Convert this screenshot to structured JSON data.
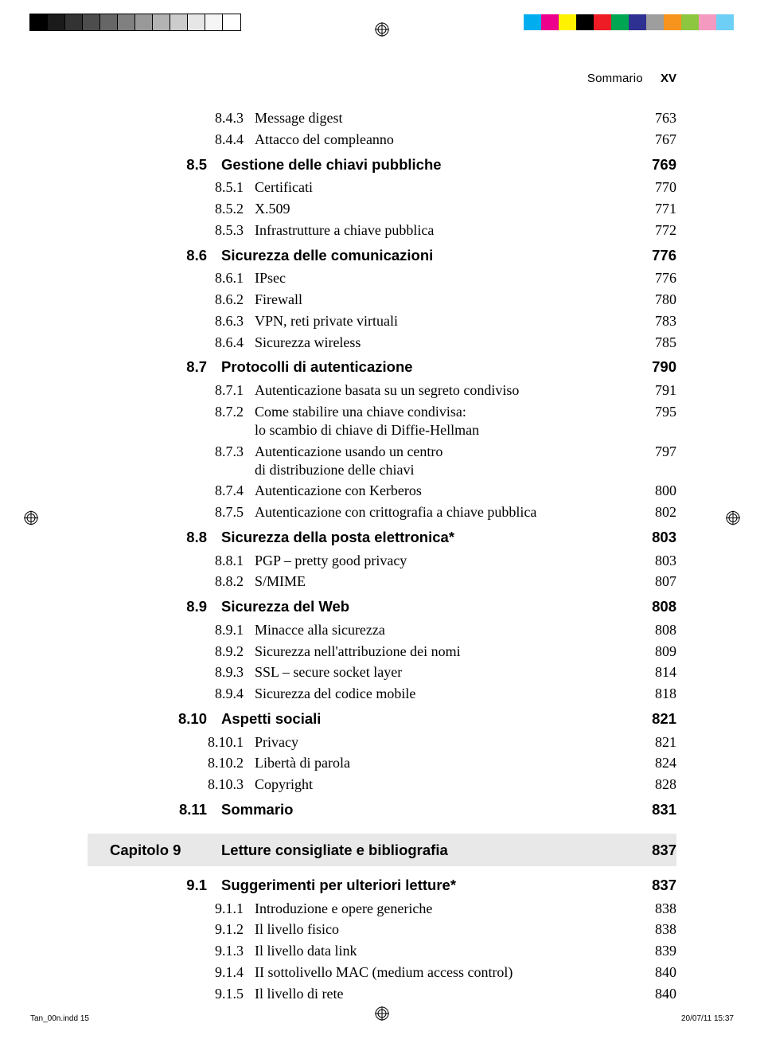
{
  "swatches_left": [
    "#000000",
    "#1a1a1a",
    "#333333",
    "#4d4d4d",
    "#666666",
    "#808080",
    "#999999",
    "#b3b3b3",
    "#cccccc",
    "#e6e6e6",
    "#f5f5f5",
    "#ffffff"
  ],
  "swatches_right": [
    "#00aeef",
    "#ec008c",
    "#fff200",
    "#000000",
    "#ee1c25",
    "#00a651",
    "#2e3192",
    "#9e9e9e",
    "#f7941d",
    "#8dc63f",
    "#f49ac1",
    "#6dcff6"
  ],
  "running_head": {
    "title": "Sommario",
    "page": "XV"
  },
  "toc": [
    {
      "type": "sub",
      "num": "8.4.3",
      "title": "Message digest",
      "page": "763"
    },
    {
      "type": "sub",
      "num": "8.4.4",
      "title": "Attacco del compleanno",
      "page": "767"
    },
    {
      "type": "section",
      "num": "8.5",
      "title": "Gestione delle chiavi pubbliche",
      "page": "769"
    },
    {
      "type": "sub",
      "num": "8.5.1",
      "title": "Certificati",
      "page": "770"
    },
    {
      "type": "sub",
      "num": "8.5.2",
      "title": "X.509",
      "page": "771"
    },
    {
      "type": "sub",
      "num": "8.5.3",
      "title": "Infrastrutture a chiave pubblica",
      "page": "772"
    },
    {
      "type": "section",
      "num": "8.6",
      "title": "Sicurezza delle comunicazioni",
      "page": "776"
    },
    {
      "type": "sub",
      "num": "8.6.1",
      "title": "IPsec",
      "page": "776"
    },
    {
      "type": "sub",
      "num": "8.6.2",
      "title": "Firewall",
      "page": "780"
    },
    {
      "type": "sub",
      "num": "8.6.3",
      "title": "VPN, reti private virtuali",
      "page": "783"
    },
    {
      "type": "sub",
      "num": "8.6.4",
      "title": "Sicurezza wireless",
      "page": "785"
    },
    {
      "type": "section",
      "num": "8.7",
      "title": "Protocolli di autenticazione",
      "page": "790"
    },
    {
      "type": "sub",
      "num": "8.7.1",
      "title": "Autenticazione basata su un segreto condiviso",
      "page": "791"
    },
    {
      "type": "sub",
      "num": "8.7.2",
      "title": "Come stabilire una chiave condivisa:",
      "title2": "lo scambio di chiave di Diffie-Hellman",
      "page": "795"
    },
    {
      "type": "sub",
      "num": "8.7.3",
      "title": "Autenticazione usando un centro",
      "title2": "di distribuzione delle chiavi",
      "page": "797"
    },
    {
      "type": "sub",
      "num": "8.7.4",
      "title": "Autenticazione con Kerberos",
      "page": "800"
    },
    {
      "type": "sub",
      "num": "8.7.5",
      "title": "Autenticazione con crittografia a chiave pubblica",
      "page": "802"
    },
    {
      "type": "section",
      "num": "8.8",
      "title": "Sicurezza della posta elettronica*",
      "page": "803"
    },
    {
      "type": "sub",
      "num": "8.8.1",
      "title": "PGP – pretty good privacy",
      "page": "803"
    },
    {
      "type": "sub",
      "num": "8.8.2",
      "title": "S/MIME",
      "page": "807"
    },
    {
      "type": "section",
      "num": "8.9",
      "title": "Sicurezza del Web",
      "page": "808"
    },
    {
      "type": "sub",
      "num": "8.9.1",
      "title": "Minacce alla sicurezza",
      "page": "808"
    },
    {
      "type": "sub",
      "num": "8.9.2",
      "title": "Sicurezza nell'attribuzione dei nomi",
      "page": "809"
    },
    {
      "type": "sub",
      "num": "8.9.3",
      "title": "SSL – secure socket layer",
      "page": "814"
    },
    {
      "type": "sub",
      "num": "8.9.4",
      "title": "Sicurezza del codice mobile",
      "page": "818"
    },
    {
      "type": "section",
      "num": "8.10",
      "title": "Aspetti sociali",
      "page": "821"
    },
    {
      "type": "sub",
      "num": "8.10.1",
      "title": "Privacy",
      "page": "821"
    },
    {
      "type": "sub",
      "num": "8.10.2",
      "title": "Libertà di parola",
      "page": "824"
    },
    {
      "type": "sub",
      "num": "8.10.3",
      "title": "Copyright",
      "page": "828"
    },
    {
      "type": "section",
      "num": "8.11",
      "title": "Sommario",
      "page": "831"
    },
    {
      "type": "chapter",
      "num": "Capitolo 9",
      "title": "Letture consigliate e bibliografia",
      "page": "837"
    },
    {
      "type": "section",
      "num": "9.1",
      "title": "Suggerimenti per ulteriori letture*",
      "page": "837"
    },
    {
      "type": "sub",
      "num": "9.1.1",
      "title": "Introduzione e opere generiche",
      "page": "838"
    },
    {
      "type": "sub",
      "num": "9.1.2",
      "title": "Il livello fisico",
      "page": "838"
    },
    {
      "type": "sub",
      "num": "9.1.3",
      "title": "Il livello data link",
      "page": "839"
    },
    {
      "type": "sub",
      "num": "9.1.4",
      "title": "II sottolivello MAC (medium access control)",
      "page": "840"
    },
    {
      "type": "sub",
      "num": "9.1.5",
      "title": "Il livello di rete",
      "page": "840"
    }
  ],
  "footer": {
    "left": "Tan_00n.indd   15",
    "right": "20/07/11   15:37"
  }
}
